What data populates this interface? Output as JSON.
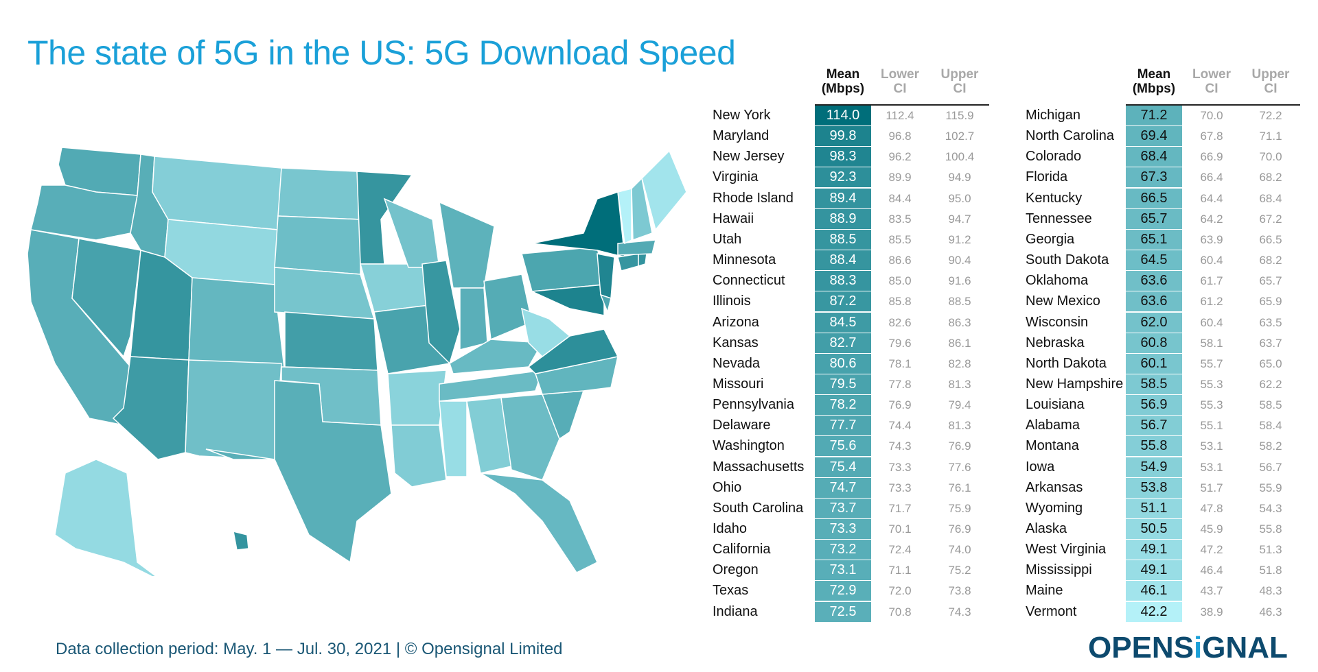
{
  "title": "The state of 5G in the US: 5G Download Speed",
  "footer": "Data collection period: May. 1 — Jul. 30, 2021 | © Opensignal Limited",
  "logo": "OPENSIGNAL",
  "colors": {
    "title": "#1aa0d8",
    "max": "#006e7a",
    "min": "#b4f1f8",
    "footer": "#1a5775"
  },
  "chart_data": {
    "type": "table",
    "title": "The state of 5G in the US: 5G Download Speed",
    "columns": [
      "Mean (Mbps)",
      "Lower CI",
      "Upper CI"
    ],
    "headers": {
      "mean": [
        "Mean",
        "(Mbps)"
      ],
      "lower": [
        "Lower",
        "CI"
      ],
      "upper": [
        "Upper",
        "CI"
      ]
    },
    "rows": [
      [
        "New York",
        114.0,
        112.4,
        115.9
      ],
      [
        "Maryland",
        99.8,
        96.8,
        102.7
      ],
      [
        "New Jersey",
        98.3,
        96.2,
        100.4
      ],
      [
        "Virginia",
        92.3,
        89.9,
        94.9
      ],
      [
        "Rhode Island",
        89.4,
        84.4,
        95.0
      ],
      [
        "Hawaii",
        88.9,
        83.5,
        94.7
      ],
      [
        "Utah",
        88.5,
        85.5,
        91.2
      ],
      [
        "Minnesota",
        88.4,
        86.6,
        90.4
      ],
      [
        "Connecticut",
        88.3,
        85.0,
        91.6
      ],
      [
        "Illinois",
        87.2,
        85.8,
        88.5
      ],
      [
        "Arizona",
        84.5,
        82.6,
        86.3
      ],
      [
        "Kansas",
        82.7,
        79.6,
        86.1
      ],
      [
        "Nevada",
        80.6,
        78.1,
        82.8
      ],
      [
        "Missouri",
        79.5,
        77.8,
        81.3
      ],
      [
        "Pennsylvania",
        78.2,
        76.9,
        79.4
      ],
      [
        "Delaware",
        77.7,
        74.4,
        81.3
      ],
      [
        "Washington",
        75.6,
        74.3,
        76.9
      ],
      [
        "Massachusetts",
        75.4,
        73.3,
        77.6
      ],
      [
        "Ohio",
        74.7,
        73.3,
        76.1
      ],
      [
        "South Carolina",
        73.7,
        71.7,
        75.9
      ],
      [
        "Idaho",
        73.3,
        70.1,
        76.9
      ],
      [
        "California",
        73.2,
        72.4,
        74.0
      ],
      [
        "Oregon",
        73.1,
        71.1,
        75.2
      ],
      [
        "Texas",
        72.9,
        72.0,
        73.8
      ],
      [
        "Indiana",
        72.5,
        70.8,
        74.3
      ],
      [
        "Michigan",
        71.2,
        70.0,
        72.2
      ],
      [
        "North Carolina",
        69.4,
        67.8,
        71.1
      ],
      [
        "Colorado",
        68.4,
        66.9,
        70.0
      ],
      [
        "Florida",
        67.3,
        66.4,
        68.2
      ],
      [
        "Kentucky",
        66.5,
        64.4,
        68.4
      ],
      [
        "Tennessee",
        65.7,
        64.2,
        67.2
      ],
      [
        "Georgia",
        65.1,
        63.9,
        66.5
      ],
      [
        "South Dakota",
        64.5,
        60.4,
        68.2
      ],
      [
        "Oklahoma",
        63.6,
        61.7,
        65.7
      ],
      [
        "New Mexico",
        63.6,
        61.2,
        65.9
      ],
      [
        "Wisconsin",
        62.0,
        60.4,
        63.5
      ],
      [
        "Nebraska",
        60.8,
        58.1,
        63.7
      ],
      [
        "North Dakota",
        60.1,
        55.7,
        65.0
      ],
      [
        "New Hampshire",
        58.5,
        55.3,
        62.2
      ],
      [
        "Louisiana",
        56.9,
        55.3,
        58.5
      ],
      [
        "Alabama",
        56.7,
        55.1,
        58.4
      ],
      [
        "Montana",
        55.8,
        53.1,
        58.2
      ],
      [
        "Iowa",
        54.9,
        53.1,
        56.7
      ],
      [
        "Arkansas",
        53.8,
        51.7,
        55.9
      ],
      [
        "Wyoming",
        51.1,
        47.8,
        54.3
      ],
      [
        "Alaska",
        50.5,
        45.9,
        55.8
      ],
      [
        "West Virginia",
        49.1,
        47.2,
        51.3
      ],
      [
        "Mississippi",
        49.1,
        46.4,
        51.8
      ],
      [
        "Maine",
        46.1,
        43.7,
        48.3
      ],
      [
        "Vermont",
        42.2,
        38.9,
        46.3
      ]
    ],
    "value_range": [
      42.2,
      114.0
    ]
  }
}
